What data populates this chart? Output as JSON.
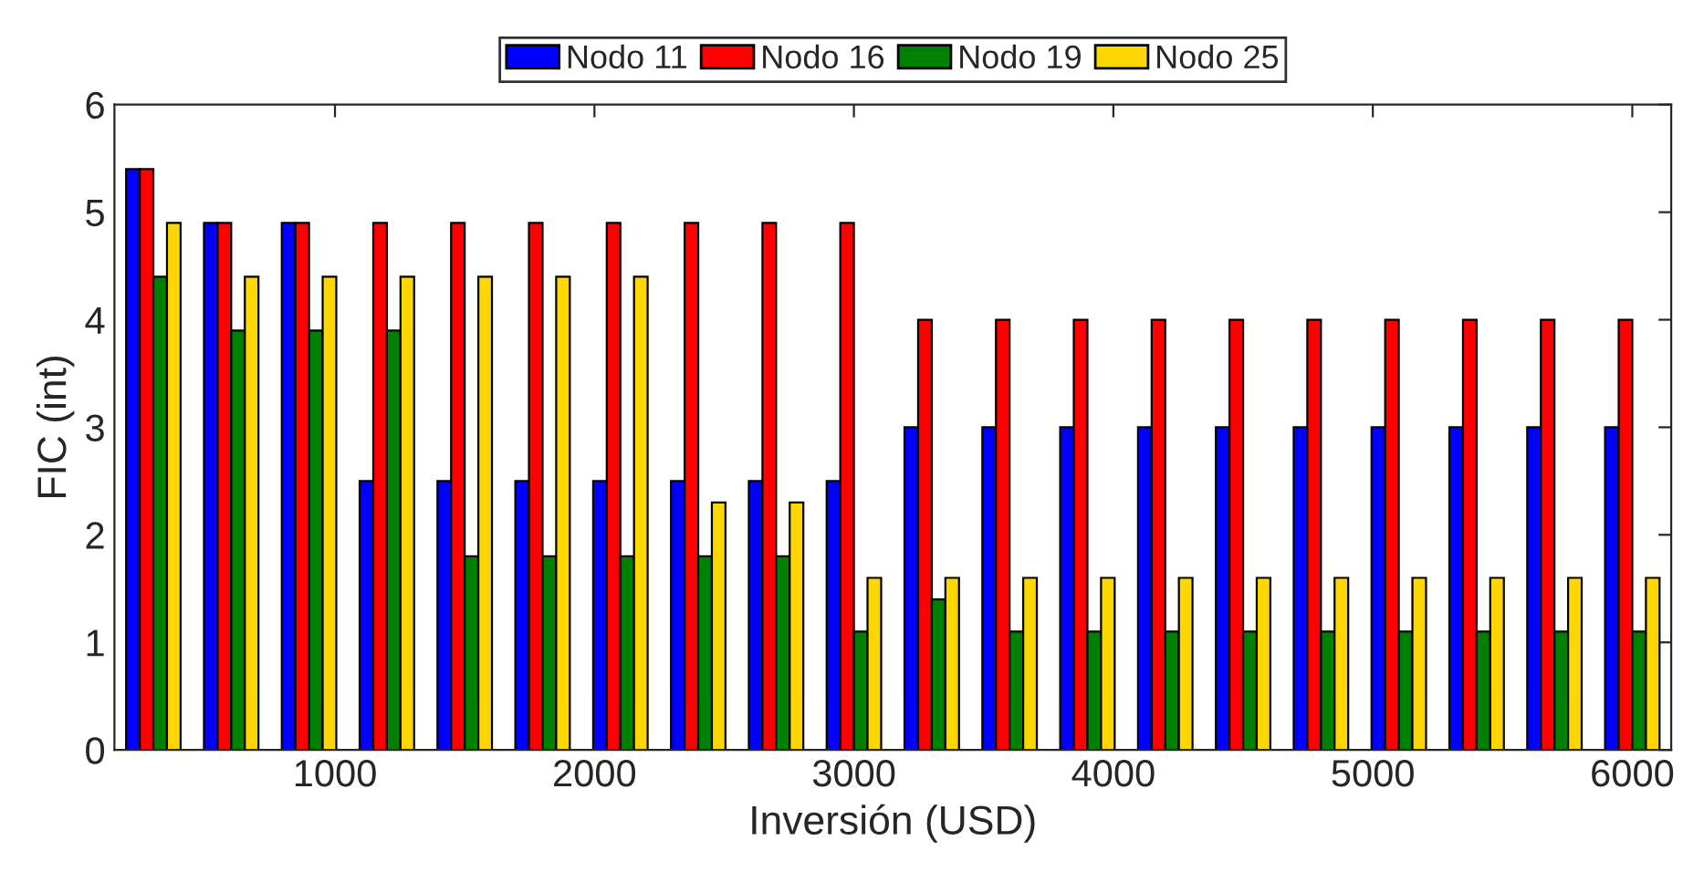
{
  "chart_data": {
    "type": "bar",
    "xlabel": "Inversión (USD)",
    "ylabel": "FIC (int)",
    "x": [
      300,
      600,
      900,
      1200,
      1500,
      1800,
      2100,
      2400,
      2700,
      3000,
      3300,
      3600,
      3900,
      4200,
      4500,
      4800,
      5100,
      5400,
      5700,
      6000
    ],
    "series": [
      {
        "name": "Nodo 11",
        "color": "#0000ff",
        "values": [
          5.4,
          4.9,
          4.9,
          2.5,
          2.5,
          2.5,
          2.5,
          2.5,
          2.5,
          2.5,
          3,
          3,
          3,
          3,
          3,
          3,
          3,
          3,
          3,
          3
        ]
      },
      {
        "name": "Nodo 16",
        "color": "#ff0000",
        "values": [
          5.4,
          4.9,
          4.9,
          4.9,
          4.9,
          4.9,
          4.9,
          4.9,
          4.9,
          4.9,
          4,
          4,
          4,
          4,
          4,
          4,
          4,
          4,
          4,
          4
        ]
      },
      {
        "name": "Nodo 19",
        "color": "#008000",
        "values": [
          4.4,
          3.9,
          3.9,
          3.9,
          1.8,
          1.8,
          1.8,
          1.8,
          1.8,
          1.1,
          1.4,
          1.1,
          1.1,
          1.1,
          1.1,
          1.1,
          1.1,
          1.1,
          1.1,
          1.1
        ]
      },
      {
        "name": "Nodo 25",
        "color": "#ffd700",
        "values": [
          4.9,
          4.4,
          4.4,
          4.4,
          4.4,
          4.4,
          4.4,
          2.3,
          2.3,
          1.6,
          1.6,
          1.6,
          1.6,
          1.6,
          1.6,
          1.6,
          1.6,
          1.6,
          1.6,
          1.6
        ]
      }
    ],
    "xlim": [
      150,
      6150
    ],
    "xticks": [
      1000,
      2000,
      3000,
      4000,
      5000,
      6000
    ],
    "ylim": [
      0,
      6
    ],
    "yticks": [
      0,
      1,
      2,
      3,
      4,
      5,
      6
    ],
    "grid": false,
    "legend": "top"
  }
}
